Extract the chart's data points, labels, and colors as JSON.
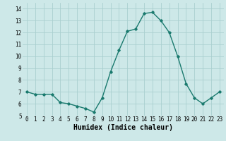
{
  "x": [
    0,
    1,
    2,
    3,
    4,
    5,
    6,
    7,
    8,
    9,
    10,
    11,
    12,
    13,
    14,
    15,
    16,
    17,
    18,
    19,
    20,
    21,
    22,
    23
  ],
  "y": [
    7.0,
    6.8,
    6.8,
    6.8,
    6.1,
    6.0,
    5.8,
    5.6,
    5.3,
    6.5,
    8.7,
    10.5,
    12.1,
    12.3,
    13.6,
    13.7,
    13.0,
    12.0,
    10.0,
    7.7,
    6.5,
    6.0,
    6.5,
    7.0
  ],
  "xlim": [
    -0.5,
    23.5
  ],
  "ylim": [
    5.0,
    14.5
  ],
  "yticks": [
    5,
    6,
    7,
    8,
    9,
    10,
    11,
    12,
    13,
    14
  ],
  "xticks": [
    0,
    1,
    2,
    3,
    4,
    5,
    6,
    7,
    8,
    9,
    10,
    11,
    12,
    13,
    14,
    15,
    16,
    17,
    18,
    19,
    20,
    21,
    22,
    23
  ],
  "xlabel": "Humidex (Indice chaleur)",
  "line_color": "#1a7a6e",
  "marker": "D",
  "marker_size": 1.8,
  "line_width": 1.0,
  "bg_color": "#cde8e8",
  "grid_color": "#aacfcf",
  "xlabel_fontsize": 7,
  "tick_fontsize": 5.5
}
